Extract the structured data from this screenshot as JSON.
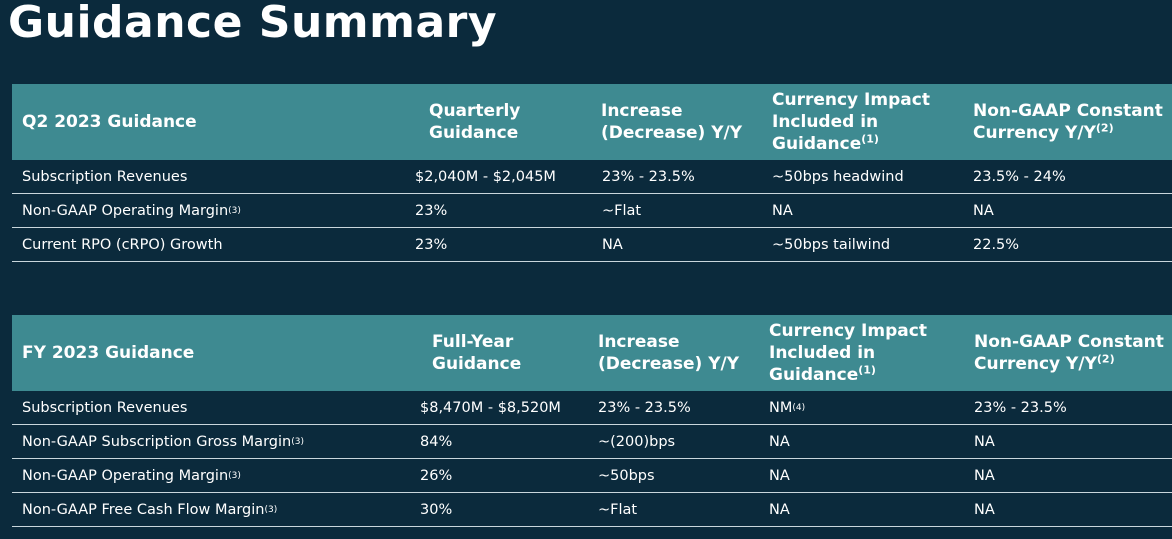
{
  "page": {
    "title": "Guidance Summary"
  },
  "q2": {
    "header": {
      "label": "Q2 2023 Guidance",
      "col1": "Quarterly Guidance",
      "col2": "Increase (Decrease) Y/Y",
      "col3": "Currency Impact Included in Guidance",
      "col3_note": "(1)",
      "col4": "Non-GAAP Constant Currency Y/Y",
      "col4_note": "(2)"
    },
    "rows": [
      {
        "label": "Subscription Revenues",
        "note": "",
        "guidance": "$2,040M - $2,045M",
        "change": "23% - 23.5%",
        "currency": "~50bps headwind",
        "currency_note": "",
        "constant": "23.5% - 24%"
      },
      {
        "label": "Non-GAAP Operating Margin",
        "note": "(3)",
        "guidance": "23%",
        "change": "~Flat",
        "currency": "NA",
        "currency_note": "",
        "constant": "NA"
      },
      {
        "label": "Current RPO (cRPO) Growth",
        "note": "",
        "guidance": "23%",
        "change": "NA",
        "currency": "~50bps tailwind",
        "currency_note": "",
        "constant": "22.5%"
      }
    ]
  },
  "fy": {
    "header": {
      "label": "FY 2023 Guidance",
      "col1": "Full-Year Guidance",
      "col2": "Increase (Decrease) Y/Y",
      "col3": "Currency Impact Included in Guidance",
      "col3_note": "(1)",
      "col4": "Non-GAAP Constant Currency Y/Y",
      "col4_note": "(2)"
    },
    "rows": [
      {
        "label": "Subscription Revenues",
        "note": "",
        "guidance": "$8,470M - $8,520M",
        "change": "23% - 23.5%",
        "currency": "NM",
        "currency_note": "(4)",
        "constant": "23% - 23.5%"
      },
      {
        "label": "Non-GAAP Subscription Gross Margin",
        "note": "(3)",
        "guidance": "84%",
        "change": "~(200)bps",
        "currency": "NA",
        "currency_note": "",
        "constant": "NA"
      },
      {
        "label": "Non-GAAP Operating Margin",
        "note": "(3)",
        "guidance": "26%",
        "change": "~50bps",
        "currency": "NA",
        "currency_note": "",
        "constant": "NA"
      },
      {
        "label": "Non-GAAP Free Cash Flow Margin",
        "note": "(3)",
        "guidance": "30%",
        "change": "~Flat",
        "currency": "NA",
        "currency_note": "",
        "constant": "NA"
      }
    ]
  },
  "colors": {
    "background": "#0b2a3c",
    "header_fill": "#3e8a91",
    "rule": "#c9d6dc",
    "text": "#ffffff"
  }
}
